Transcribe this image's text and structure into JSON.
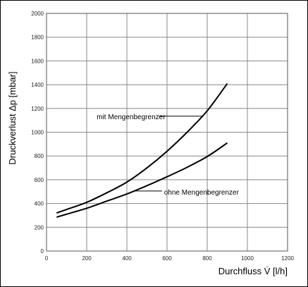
{
  "chart_data": {
    "type": "line",
    "xlabel": "Durchfluss V̇ [l/h]",
    "ylabel": "Druckverlust Δp [mbar]",
    "xlim": [
      0,
      1200
    ],
    "ylim": [
      0,
      2000
    ],
    "xticks": [
      0,
      200,
      400,
      600,
      800,
      1000,
      1200
    ],
    "yticks": [
      0,
      200,
      400,
      600,
      800,
      1000,
      1200,
      1400,
      1600,
      1800,
      2000
    ],
    "grid": true,
    "series": [
      {
        "name": "mit Mengenbegrenzer",
        "x": [
          50,
          100,
          200,
          300,
          400,
          500,
          600,
          700,
          800,
          900
        ],
        "y": [
          320,
          350,
          410,
          490,
          580,
          700,
          840,
          1000,
          1180,
          1410
        ]
      },
      {
        "name": "ohne Mengenbegrenzer",
        "x": [
          50,
          100,
          200,
          300,
          400,
          500,
          600,
          700,
          800,
          900
        ],
        "y": [
          285,
          310,
          360,
          420,
          480,
          550,
          625,
          705,
          795,
          910
        ]
      }
    ],
    "annotations": [
      {
        "text": "mit Mengenbegrenzer",
        "series": 0
      },
      {
        "text": "ohne Mengenbegrenzer",
        "series": 1
      }
    ]
  }
}
